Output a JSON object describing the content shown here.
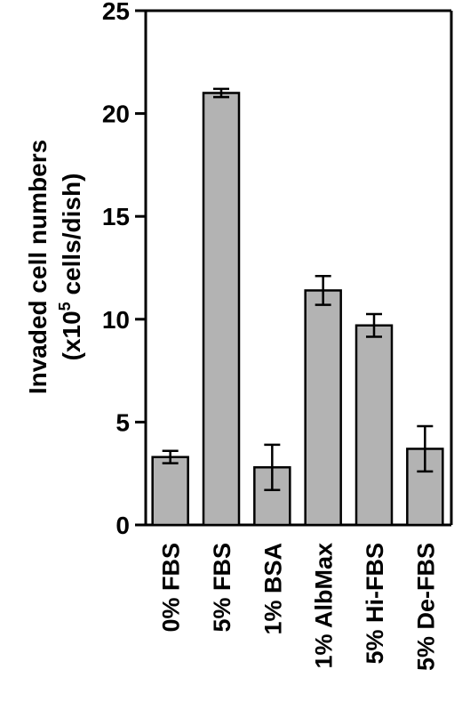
{
  "chart_data": {
    "type": "bar",
    "title": "",
    "xlabel": "",
    "ylabel_line1": "Invaded cell numbers",
    "ylabel_line2_prefix": "(x10",
    "ylabel_line2_sup": "5",
    "ylabel_line2_suffix": " cells/dish)",
    "ylim": [
      0,
      25
    ],
    "yticks": [
      0,
      5,
      10,
      15,
      20,
      25
    ],
    "categories": [
      "0% FBS",
      "5% FBS",
      "1% BSA",
      "1% AlbMax",
      "5% Hi-FBS",
      "5% De-FBS"
    ],
    "values": [
      3.3,
      21.0,
      2.8,
      11.4,
      9.7,
      3.7
    ],
    "errors": [
      0.3,
      0.2,
      1.1,
      0.7,
      0.55,
      1.1
    ],
    "bar_color": "#b3b3b3",
    "grid": false
  }
}
